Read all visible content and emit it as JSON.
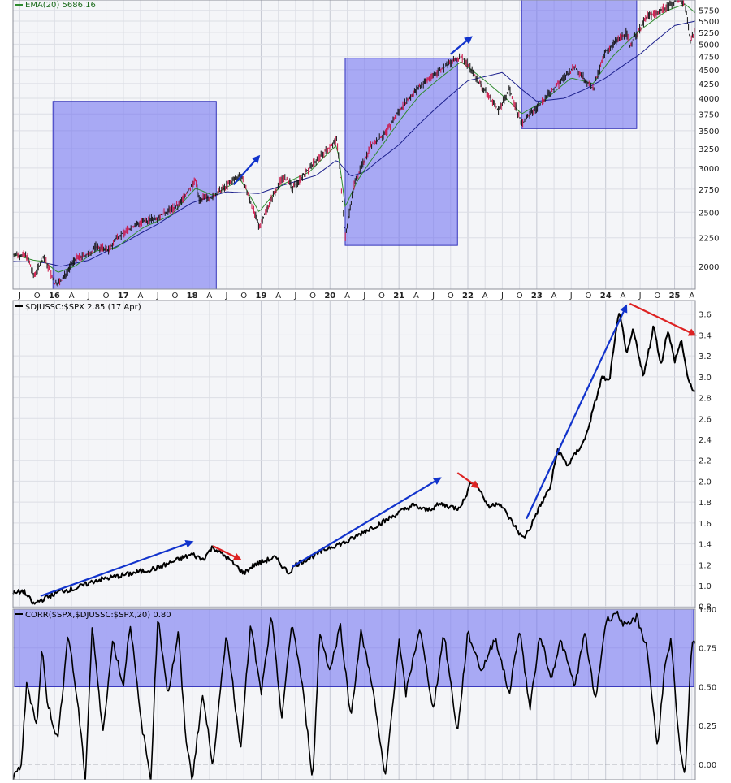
{
  "chart_data": [
    {
      "panel": "price",
      "type": "line",
      "legend_text": "EMA(20) 5686.16",
      "colors": {
        "price_up": "#111111",
        "price_down": "#cc1144",
        "ema_short": "#2e8b2e",
        "ema_long": "#1b1f8c",
        "highlight": "#6a6af0"
      },
      "y_ticks": [
        2000,
        2250,
        2500,
        2750,
        3000,
        3250,
        3500,
        3750,
        4000,
        4250,
        4500,
        4750,
        5000,
        5250,
        5500,
        5750
      ],
      "y_scale": "log",
      "ylim": [
        1820,
        6000
      ],
      "x_range": [
        2015.4,
        2025.3
      ],
      "x_ticks": [
        {
          "t": 2015.5,
          "label": "J"
        },
        {
          "t": 2015.75,
          "label": "O"
        },
        {
          "t": 2016.0,
          "label": "16",
          "year": true
        },
        {
          "t": 2016.25,
          "label": "A"
        },
        {
          "t": 2016.5,
          "label": "J"
        },
        {
          "t": 2016.75,
          "label": "O"
        },
        {
          "t": 2017.0,
          "label": "17",
          "year": true
        },
        {
          "t": 2017.25,
          "label": "A"
        },
        {
          "t": 2017.5,
          "label": "J"
        },
        {
          "t": 2017.75,
          "label": "O"
        },
        {
          "t": 2018.0,
          "label": "18",
          "year": true
        },
        {
          "t": 2018.25,
          "label": "A"
        },
        {
          "t": 2018.5,
          "label": "J"
        },
        {
          "t": 2018.75,
          "label": "O"
        },
        {
          "t": 2019.0,
          "label": "19",
          "year": true
        },
        {
          "t": 2019.25,
          "label": "A"
        },
        {
          "t": 2019.5,
          "label": "J"
        },
        {
          "t": 2019.75,
          "label": "O"
        },
        {
          "t": 2020.0,
          "label": "20",
          "year": true
        },
        {
          "t": 2020.25,
          "label": "A"
        },
        {
          "t": 2020.5,
          "label": "J"
        },
        {
          "t": 2020.75,
          "label": "O"
        },
        {
          "t": 2021.0,
          "label": "21",
          "year": true
        },
        {
          "t": 2021.25,
          "label": "A"
        },
        {
          "t": 2021.5,
          "label": "J"
        },
        {
          "t": 2021.75,
          "label": "O"
        },
        {
          "t": 2022.0,
          "label": "22",
          "year": true
        },
        {
          "t": 2022.25,
          "label": "A"
        },
        {
          "t": 2022.5,
          "label": "J"
        },
        {
          "t": 2022.75,
          "label": "O"
        },
        {
          "t": 2023.0,
          "label": "23",
          "year": true
        },
        {
          "t": 2023.25,
          "label": "A"
        },
        {
          "t": 2023.5,
          "label": "J"
        },
        {
          "t": 2023.75,
          "label": "O"
        },
        {
          "t": 2024.0,
          "label": "24",
          "year": true
        },
        {
          "t": 2024.25,
          "label": "A"
        },
        {
          "t": 2024.5,
          "label": "J"
        },
        {
          "t": 2024.75,
          "label": "O"
        },
        {
          "t": 2025.0,
          "label": "25",
          "year": true
        },
        {
          "t": 2025.25,
          "label": "A"
        }
      ],
      "series": [
        {
          "x": [
            2015.4,
            2015.6,
            2015.7,
            2015.85,
            2016.0,
            2016.1,
            2016.3,
            2016.5,
            2016.6,
            2016.8,
            2016.9,
            2017.2,
            2017.5,
            2017.8,
            2018.05,
            2018.1,
            2018.3,
            2018.7,
            2018.97,
            2019.3,
            2019.4,
            2019.45,
            2019.7,
            2020.0,
            2020.1,
            2020.22,
            2020.35,
            2020.6,
            2020.8,
            2021.0,
            2021.3,
            2021.6,
            2021.9,
            2022.0,
            2022.2,
            2022.45,
            2022.6,
            2022.78,
            2023.0,
            2023.2,
            2023.55,
            2023.82,
            2024.0,
            2024.3,
            2024.35,
            2024.6,
            2024.75,
            2024.95,
            2025.05,
            2025.15,
            2025.23,
            2025.3
          ],
          "values": [
            2100,
            2090,
            1920,
            2080,
            1860,
            1880,
            2060,
            2100,
            2170,
            2140,
            2250,
            2380,
            2450,
            2570,
            2850,
            2640,
            2660,
            2920,
            2350,
            2880,
            2850,
            2750,
            3000,
            3280,
            3380,
            2240,
            2800,
            3300,
            3450,
            3800,
            4200,
            4500,
            4750,
            4600,
            4200,
            3800,
            4150,
            3600,
            3850,
            4100,
            4550,
            4150,
            4850,
            5250,
            4970,
            5600,
            5700,
            5900,
            6050,
            5900,
            5050,
            5300
          ]
        },
        {
          "x": [
            2015.4,
            2015.7,
            2015.85,
            2016.05,
            2016.3,
            2016.6,
            2016.9,
            2017.3,
            2017.7,
            2018.05,
            2018.3,
            2018.7,
            2018.97,
            2019.3,
            2019.7,
            2020.1,
            2020.22,
            2020.4,
            2020.8,
            2021.3,
            2021.9,
            2022.2,
            2022.6,
            2022.78,
            2023.1,
            2023.5,
            2023.82,
            2024.1,
            2024.5,
            2024.9,
            2025.15,
            2025.3
          ],
          "values": [
            2100,
            2050,
            2040,
            1950,
            2000,
            2130,
            2160,
            2350,
            2470,
            2760,
            2680,
            2860,
            2500,
            2800,
            2950,
            3300,
            2550,
            2850,
            3350,
            4050,
            4650,
            4350,
            3950,
            3750,
            3950,
            4350,
            4250,
            4750,
            5300,
            5750,
            5900,
            5690
          ]
        },
        {
          "x": [
            2015.4,
            2015.8,
            2016.1,
            2016.5,
            2017.0,
            2017.5,
            2018.0,
            2018.5,
            2018.97,
            2019.3,
            2019.8,
            2020.1,
            2020.3,
            2020.5,
            2021.0,
            2021.5,
            2022.0,
            2022.5,
            2022.78,
            2023.0,
            2023.4,
            2023.7,
            2024.0,
            2024.5,
            2025.0,
            2025.3
          ],
          "values": [
            2040,
            2035,
            2000,
            2050,
            2200,
            2380,
            2600,
            2720,
            2700,
            2790,
            2910,
            3100,
            2900,
            2950,
            3300,
            3800,
            4300,
            4450,
            4150,
            3950,
            4000,
            4150,
            4350,
            4800,
            5400,
            5500
          ]
        }
      ]
    },
    {
      "panel": "ratio",
      "type": "line",
      "legend_text": "$DJUSSC:$SPX 2.85 (17 Apr)",
      "y_ticks": [
        0.8,
        1.0,
        1.2,
        1.4,
        1.6,
        1.8,
        2.0,
        2.2,
        2.4,
        2.6,
        2.8,
        3.0,
        3.2,
        3.4,
        3.6
      ],
      "ylim": [
        0.79,
        3.73
      ],
      "x_range": [
        2015.4,
        2025.3
      ],
      "series": [
        {
          "x": [
            2015.4,
            2015.55,
            2015.7,
            2015.8,
            2016.0,
            2016.1,
            2016.3,
            2016.6,
            2017.0,
            2017.5,
            2017.8,
            2018.0,
            2018.15,
            2018.3,
            2018.5,
            2018.75,
            2018.9,
            2019.2,
            2019.4,
            2019.5,
            2019.8,
            2020.0,
            2020.25,
            2020.5,
            2020.8,
            2021.0,
            2021.2,
            2021.4,
            2021.6,
            2021.85,
            2021.95,
            2022.05,
            2022.15,
            2022.3,
            2022.45,
            2022.65,
            2022.8,
            2022.9,
            2023.0,
            2023.2,
            2023.3,
            2023.45,
            2023.7,
            2023.95,
            2024.05,
            2024.2,
            2024.3,
            2024.4,
            2024.55,
            2024.7,
            2024.8,
            2024.9,
            2025.0,
            2025.1,
            2025.2,
            2025.3
          ],
          "values": [
            0.92,
            0.95,
            0.82,
            0.86,
            0.92,
            0.95,
            0.97,
            1.05,
            1.1,
            1.17,
            1.25,
            1.3,
            1.25,
            1.37,
            1.27,
            1.12,
            1.2,
            1.27,
            1.12,
            1.2,
            1.3,
            1.37,
            1.42,
            1.52,
            1.62,
            1.7,
            1.77,
            1.72,
            1.78,
            1.74,
            1.82,
            2.0,
            1.95,
            1.75,
            1.8,
            1.6,
            1.45,
            1.55,
            1.7,
            1.95,
            2.3,
            2.15,
            2.4,
            3.0,
            2.95,
            3.65,
            3.2,
            3.45,
            3.0,
            3.5,
            3.1,
            3.45,
            3.15,
            3.35,
            2.95,
            2.85
          ]
        }
      ]
    },
    {
      "panel": "correlation",
      "type": "line",
      "legend_text": "CORR($SPX,$DJUSSC:$SPX,20) 0.80",
      "y_ticks": [
        0.0,
        0.25,
        0.5,
        0.75,
        1.0
      ],
      "ylim": [
        -0.1,
        1.0
      ],
      "highlight_band": [
        0.5,
        1.0
      ],
      "x_range": [
        2015.4,
        2025.3
      ],
      "series": [
        {
          "x": [
            2015.4,
            2015.52,
            2015.6,
            2015.75,
            2015.82,
            2015.9,
            2016.05,
            2016.2,
            2016.35,
            2016.45,
            2016.55,
            2016.7,
            2016.85,
            2017.0,
            2017.1,
            2017.25,
            2017.4,
            2017.5,
            2017.65,
            2017.8,
            2017.9,
            2018.0,
            2018.15,
            2018.3,
            2018.5,
            2018.7,
            2018.85,
            2019.0,
            2019.15,
            2019.3,
            2019.45,
            2019.6,
            2019.75,
            2019.85,
            2020.0,
            2020.15,
            2020.3,
            2020.45,
            2020.6,
            2020.8,
            2021.0,
            2021.1,
            2021.3,
            2021.5,
            2021.65,
            2021.85,
            2022.0,
            2022.2,
            2022.4,
            2022.6,
            2022.75,
            2022.9,
            2023.05,
            2023.2,
            2023.35,
            2023.55,
            2023.7,
            2023.85,
            2024.0,
            2024.15,
            2024.3,
            2024.45,
            2024.6,
            2024.75,
            2024.85,
            2024.95,
            2025.05,
            2025.15,
            2025.25,
            2025.3
          ],
          "values": [
            -0.1,
            0.0,
            0.52,
            0.25,
            0.75,
            0.4,
            0.15,
            0.85,
            0.35,
            -0.1,
            0.9,
            0.2,
            0.8,
            0.5,
            0.92,
            0.3,
            -0.1,
            0.95,
            0.45,
            0.85,
            0.2,
            -0.1,
            0.45,
            0.0,
            0.85,
            0.1,
            0.9,
            0.45,
            0.95,
            0.3,
            0.92,
            0.5,
            -0.1,
            0.85,
            0.6,
            0.9,
            0.3,
            0.85,
            0.55,
            -0.1,
            0.8,
            0.45,
            0.88,
            0.35,
            0.85,
            0.2,
            0.85,
            0.6,
            0.82,
            0.45,
            0.88,
            0.35,
            0.85,
            0.55,
            0.8,
            0.5,
            0.85,
            0.4,
            0.92,
            0.98,
            0.88,
            0.95,
            0.75,
            0.1,
            0.6,
            0.8,
            0.2,
            -0.1,
            0.8,
            0.8
          ]
        }
      ]
    }
  ],
  "highlight_boxes": [
    {
      "x0": 2015.98,
      "x1": 2018.35,
      "y0": 1820,
      "y1": 3950
    },
    {
      "x0": 2020.22,
      "x1": 2021.85,
      "y0": 2180,
      "y1": 4720
    },
    {
      "x0": 2022.78,
      "x1": 2024.45,
      "y0": 3530,
      "y1": 6000
    }
  ],
  "price_arrows": [
    {
      "x0": 2018.6,
      "y0": 2800,
      "x1": 2018.97,
      "y1": 3150,
      "color": "#1133cc"
    },
    {
      "x0": 2021.75,
      "y0": 4800,
      "x1": 2022.05,
      "y1": 5150,
      "color": "#1133cc"
    }
  ],
  "ratio_arrows": [
    {
      "x0": 2015.8,
      "y0": 0.9,
      "x1": 2018.0,
      "y1": 1.42,
      "color": "#1133cc"
    },
    {
      "x0": 2018.3,
      "y0": 1.38,
      "x1": 2018.7,
      "y1": 1.25,
      "color": "#dd2222"
    },
    {
      "x0": 2019.45,
      "y0": 1.18,
      "x1": 2021.6,
      "y1": 2.03,
      "color": "#1133cc"
    },
    {
      "x0": 2021.85,
      "y0": 2.08,
      "x1": 2022.15,
      "y1": 1.94,
      "color": "#dd2222"
    },
    {
      "x0": 2022.85,
      "y0": 1.64,
      "x1": 2024.3,
      "y1": 3.68,
      "color": "#1133cc"
    },
    {
      "x0": 2024.35,
      "y0": 3.7,
      "x1": 2025.3,
      "y1": 3.4,
      "color": "#dd2222"
    }
  ]
}
